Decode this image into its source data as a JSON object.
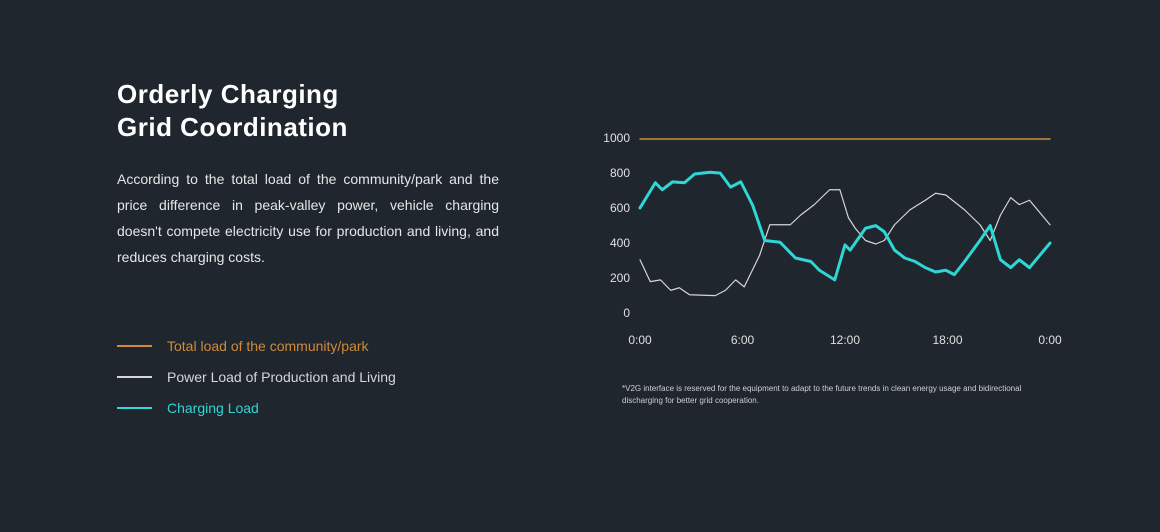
{
  "heading": [
    "Orderly Charging",
    "Grid Coordination"
  ],
  "paragraph": "According to the total load of the community/park and the price difference in peak-valley power, vehicle charging doesn't compete electricity use for production and living, and reduces charging costs.",
  "footnote": "*V2G interface is reserved for the equipment to adapt to the future trends in clean energy usage and bidirectional discharging for better grid cooperation.",
  "chart_data": {
    "type": "line",
    "xlim": [
      0,
      24
    ],
    "xticks": [
      {
        "value": 0,
        "label": "0:00"
      },
      {
        "value": 6,
        "label": "6:00"
      },
      {
        "value": 12,
        "label": "12:00"
      },
      {
        "value": 18,
        "label": "18:00"
      },
      {
        "value": 24,
        "label": "0:00"
      }
    ],
    "ylim": [
      0,
      1000
    ],
    "yticks": [
      0,
      200,
      400,
      600,
      800,
      1000
    ],
    "grid": false,
    "series": [
      {
        "name": "Total load of the community/park",
        "color": "#d08a3a",
        "x": [
          0,
          24
        ],
        "values": [
          1000,
          1000
        ]
      },
      {
        "name": "Power Load of Production and Living",
        "color": "#d6d6d6",
        "x": [
          0,
          0.6,
          1.2,
          1.8,
          2.3,
          2.9,
          4.4,
          5,
          5.6,
          6.1,
          7,
          7.6,
          8.2,
          8.8,
          9.4,
          10.2,
          11.1,
          11.7,
          12.2,
          12.6,
          13.2,
          13.8,
          14.3,
          14.9,
          15.8,
          16.7,
          17.3,
          17.9,
          19,
          19.9,
          20.5,
          21.1,
          21.7,
          22.2,
          22.8,
          24
        ],
        "values": [
          310,
          185,
          195,
          135,
          150,
          110,
          105,
          135,
          195,
          155,
          335,
          510,
          510,
          510,
          565,
          625,
          710,
          710,
          550,
          490,
          420,
          400,
          420,
          510,
          595,
          650,
          690,
          680,
          595,
          510,
          420,
          565,
          665,
          625,
          650,
          510
        ]
      },
      {
        "name": "Charging Load",
        "color": "#2fd6d6",
        "x": [
          0,
          0.9,
          1.3,
          1.9,
          2.6,
          3.2,
          4.1,
          4.7,
          5.3,
          5.9,
          6.6,
          7.3,
          8.2,
          9.1,
          10,
          10.5,
          11.4,
          12,
          12.3,
          13.2,
          13.8,
          14.3,
          14.9,
          15.5,
          16.1,
          16.7,
          17.3,
          17.9,
          18.4,
          19,
          19.9,
          20.5,
          21.1,
          21.7,
          22.2,
          22.8,
          24
        ],
        "values": [
          606,
          750,
          710,
          755,
          750,
          800,
          810,
          805,
          725,
          755,
          620,
          420,
          410,
          320,
          300,
          250,
          195,
          395,
          365,
          490,
          505,
          470,
          365,
          320,
          300,
          265,
          240,
          250,
          225,
          300,
          420,
          505,
          310,
          265,
          310,
          265,
          405
        ]
      }
    ]
  }
}
